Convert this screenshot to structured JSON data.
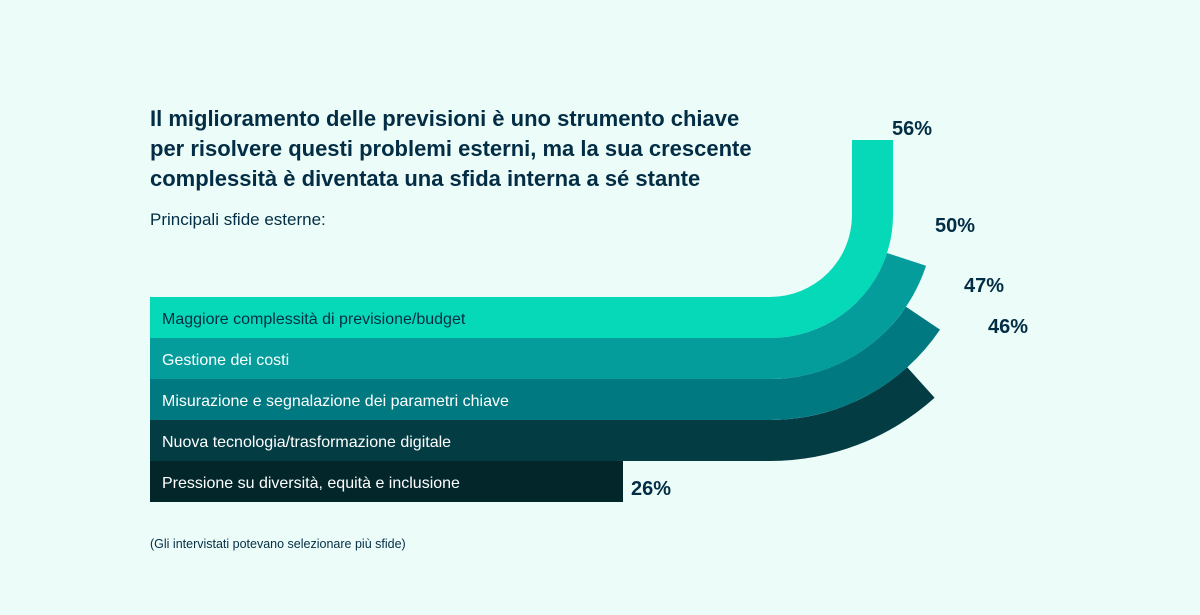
{
  "header": {
    "title_lines": [
      "Il miglioramento delle previsioni è uno strumento chiave",
      "per risolvere questi problemi esterni, ma la sua crescente",
      "complessità è diventata una sfida interna a sé stante"
    ],
    "subtitle": "Principali sfide esterne:"
  },
  "footnote": "(Gli intervistati potevano selezionare più sfide)",
  "chart_data": {
    "type": "bar",
    "orientation": "horizontal, curving upward",
    "categories": [
      "Maggiore complessità di previsione/budget",
      "Gestione dei costi",
      "Misurazione e segnalazione dei parametri chiave",
      "Nuova tecnologia/trasformazione digitale",
      "Pressione su diversità, equità e inclusione"
    ],
    "values": [
      56,
      50,
      47,
      46,
      26
    ],
    "value_labels": [
      "56%",
      "50%",
      "47%",
      "46%",
      "26%"
    ],
    "colors": [
      "#06d9b8",
      "#049d9b",
      "#007981",
      "#033c43",
      "#02262a"
    ],
    "label_colors": [
      "#032d45",
      "#ffffff",
      "#ffffff",
      "#ffffff",
      "#ffffff"
    ],
    "grid": false,
    "legend": "none"
  }
}
